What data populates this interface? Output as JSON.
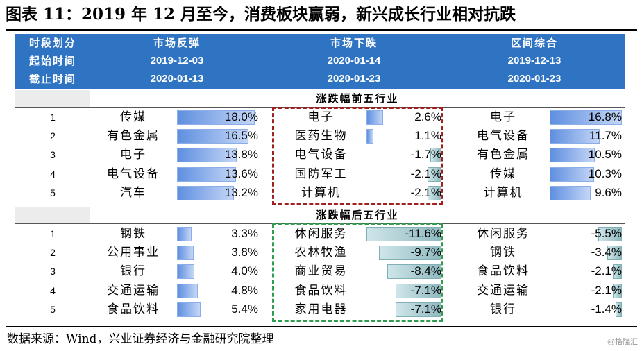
{
  "title": "图表 11：2019 年 12 月至今，消费板块赢弱，新兴成长行业相对抗跌",
  "header": {
    "labels": [
      "时段划分",
      "起始时间",
      "截止时间"
    ],
    "columns": [
      {
        "name": "市场反弹",
        "start": "2019-12-03",
        "end": "2020-01-13"
      },
      {
        "name": "市场下跌",
        "start": "2020-01-14",
        "end": "2020-01-23"
      },
      {
        "name": "区间综合",
        "start": "2019-12-13",
        "end": "2020-01-23"
      }
    ]
  },
  "sections": [
    {
      "title": "涨跌幅前五行业",
      "rows": [
        {
          "rank": "1",
          "c1": {
            "industry": "传媒",
            "value": "18.0%",
            "num": 18.0
          },
          "c2": {
            "industry": "电子",
            "value": "2.6%",
            "num": 2.6
          },
          "c3": {
            "industry": "电子",
            "value": "16.8%",
            "num": 16.8
          }
        },
        {
          "rank": "2",
          "c1": {
            "industry": "有色金属",
            "value": "16.5%",
            "num": 16.5
          },
          "c2": {
            "industry": "医药生物",
            "value": "1.1%",
            "num": 1.1
          },
          "c3": {
            "industry": "电气设备",
            "value": "11.7%",
            "num": 11.7
          }
        },
        {
          "rank": "3",
          "c1": {
            "industry": "电子",
            "value": "13.8%",
            "num": 13.8
          },
          "c2": {
            "industry": "电气设备",
            "value": "-1.7%",
            "num": -1.7
          },
          "c3": {
            "industry": "有色金属",
            "value": "10.5%",
            "num": 10.5
          }
        },
        {
          "rank": "4",
          "c1": {
            "industry": "电气设备",
            "value": "13.6%",
            "num": 13.6
          },
          "c2": {
            "industry": "国防军工",
            "value": "-2.1%",
            "num": -2.1
          },
          "c3": {
            "industry": "传媒",
            "value": "10.3%",
            "num": 10.3
          }
        },
        {
          "rank": "5",
          "c1": {
            "industry": "汽车",
            "value": "13.2%",
            "num": 13.2
          },
          "c2": {
            "industry": "计算机",
            "value": "-2.1%",
            "num": -2.1
          },
          "c3": {
            "industry": "计算机",
            "value": "9.6%",
            "num": 9.6
          }
        }
      ]
    },
    {
      "title": "涨跌幅后五行业",
      "rows": [
        {
          "rank": "1",
          "c1": {
            "industry": "钢铁",
            "value": "3.3%",
            "num": 3.3
          },
          "c2": {
            "industry": "休闲服务",
            "value": "-11.6%",
            "num": -11.6
          },
          "c3": {
            "industry": "休闲服务",
            "value": "-5.5%",
            "num": -5.5
          }
        },
        {
          "rank": "2",
          "c1": {
            "industry": "公用事业",
            "value": "3.8%",
            "num": 3.8
          },
          "c2": {
            "industry": "农林牧渔",
            "value": "-9.7%",
            "num": -9.7
          },
          "c3": {
            "industry": "钢铁",
            "value": "-3.4%",
            "num": -3.4
          }
        },
        {
          "rank": "3",
          "c1": {
            "industry": "银行",
            "value": "4.0%",
            "num": 4.0
          },
          "c2": {
            "industry": "商业贸易",
            "value": "-8.4%",
            "num": -8.4
          },
          "c3": {
            "industry": "食品饮料",
            "value": "-2.1%",
            "num": -2.1
          }
        },
        {
          "rank": "4",
          "c1": {
            "industry": "交通运输",
            "value": "4.8%",
            "num": 4.8
          },
          "c2": {
            "industry": "食品饮料",
            "value": "-7.1%",
            "num": -7.1
          },
          "c3": {
            "industry": "交通运输",
            "value": "-2.1%",
            "num": -2.1
          }
        },
        {
          "rank": "5",
          "c1": {
            "industry": "食品饮料",
            "value": "5.4%",
            "num": 5.4
          },
          "c2": {
            "industry": "家用电器",
            "value": "-7.1%",
            "num": -7.1
          },
          "c3": {
            "industry": "银行",
            "value": "-1.4%",
            "num": -1.4
          }
        }
      ]
    }
  ],
  "source": "数据来源：Wind，兴业证券经济与金融研究院整理",
  "watermark": "@格隆汇",
  "colors": {
    "header_bg": "#2f74c2",
    "bar_pos": "#5f8fe0",
    "bar_neg": "#8fb9bf",
    "box_top": "#a01f1f",
    "box_bottom": "#2f9c4f"
  }
}
